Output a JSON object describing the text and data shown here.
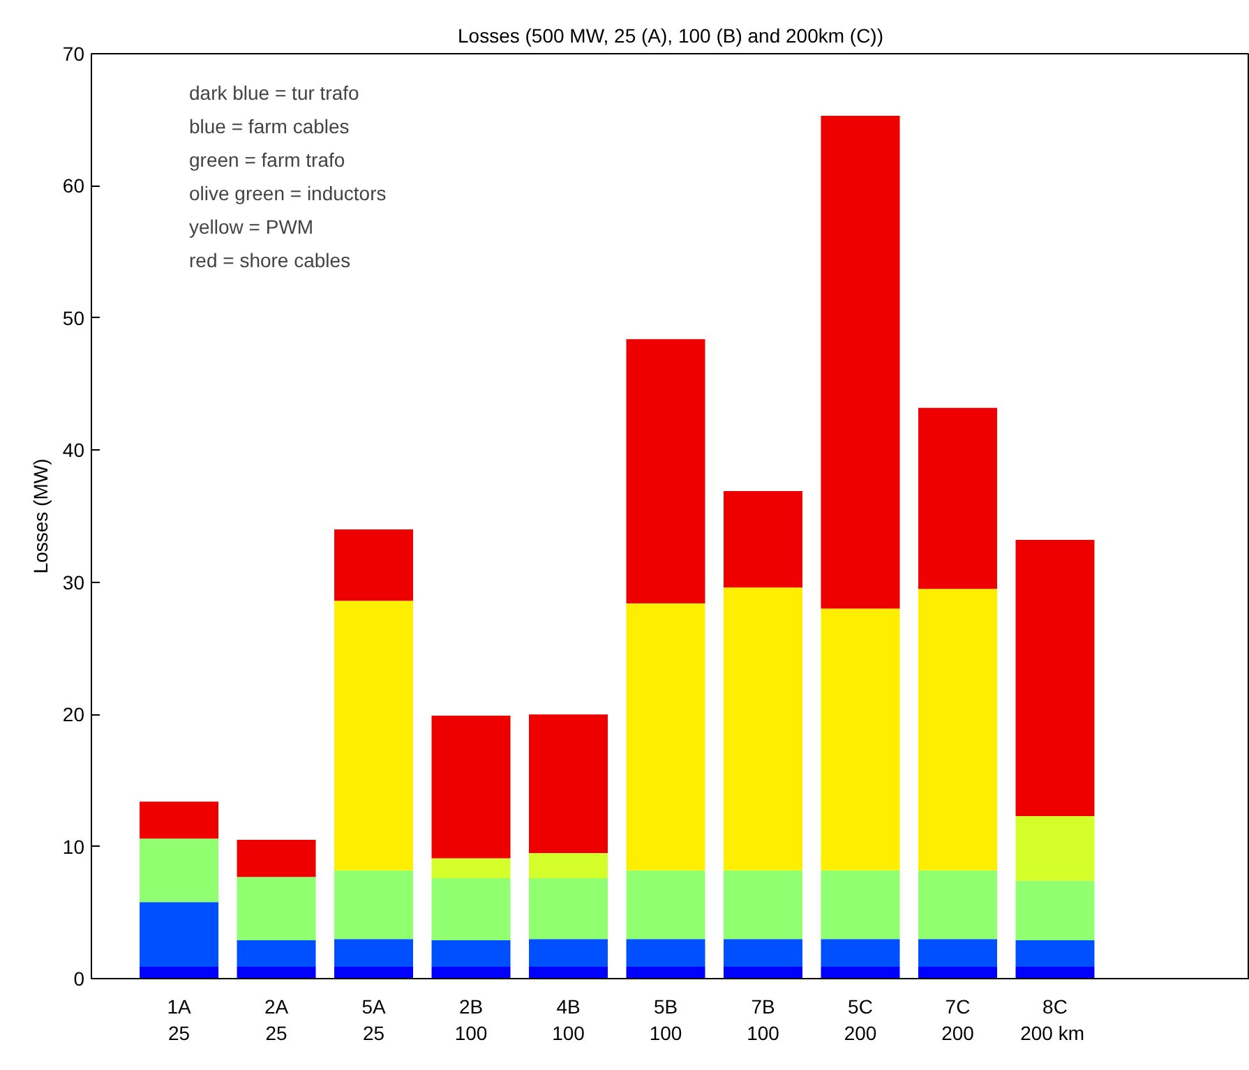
{
  "chart_data": {
    "type": "bar",
    "stacked": true,
    "title": "Losses (500 MW, 25 (A), 100 (B) and 200km (C))",
    "ylabel": "Losses (MW)",
    "categories": [
      "1A\n25",
      "2A\n25",
      "5A\n25",
      "2B\n100",
      "4B\n100",
      "5B\n100",
      "7B\n100",
      "5C\n200",
      "7C\n200",
      "8C\n200  km"
    ],
    "series": [
      {
        "color": "#0000ff",
        "values": [
          0.9,
          0.9,
          0.9,
          0.9,
          0.9,
          0.9,
          0.9,
          0.9,
          0.9,
          0.9
        ]
      },
      {
        "color": "#0050ff",
        "values": [
          4.9,
          2.0,
          2.1,
          2.0,
          2.1,
          2.1,
          2.1,
          2.1,
          2.1,
          2.0
        ]
      },
      {
        "color": "#90ff70",
        "values": [
          4.8,
          4.8,
          5.2,
          4.7,
          4.6,
          5.2,
          5.2,
          5.2,
          5.2,
          4.5
        ]
      },
      {
        "color": "#d4ff2a",
        "values": [
          null,
          null,
          null,
          1.5,
          1.9,
          null,
          null,
          null,
          null,
          4.9
        ]
      },
      {
        "color": "#ffee00",
        "values": [
          null,
          null,
          20.4,
          null,
          null,
          20.2,
          21.4,
          19.8,
          21.3,
          null
        ]
      },
      {
        "color": "#ee0000",
        "values": [
          2.8,
          2.8,
          5.4,
          10.8,
          10.5,
          20.0,
          7.3,
          37.3,
          13.7,
          20.9
        ]
      }
    ],
    "ylim": [
      0,
      70
    ],
    "yticks": [
      0,
      10,
      20,
      30,
      40,
      50,
      60,
      70
    ],
    "grid": false,
    "annotations": [
      "dark blue = tur trafo",
      "blue = farm cables",
      "green = farm trafo",
      "olive green = inductors",
      "yellow = PWM",
      "red = shore cables"
    ]
  }
}
